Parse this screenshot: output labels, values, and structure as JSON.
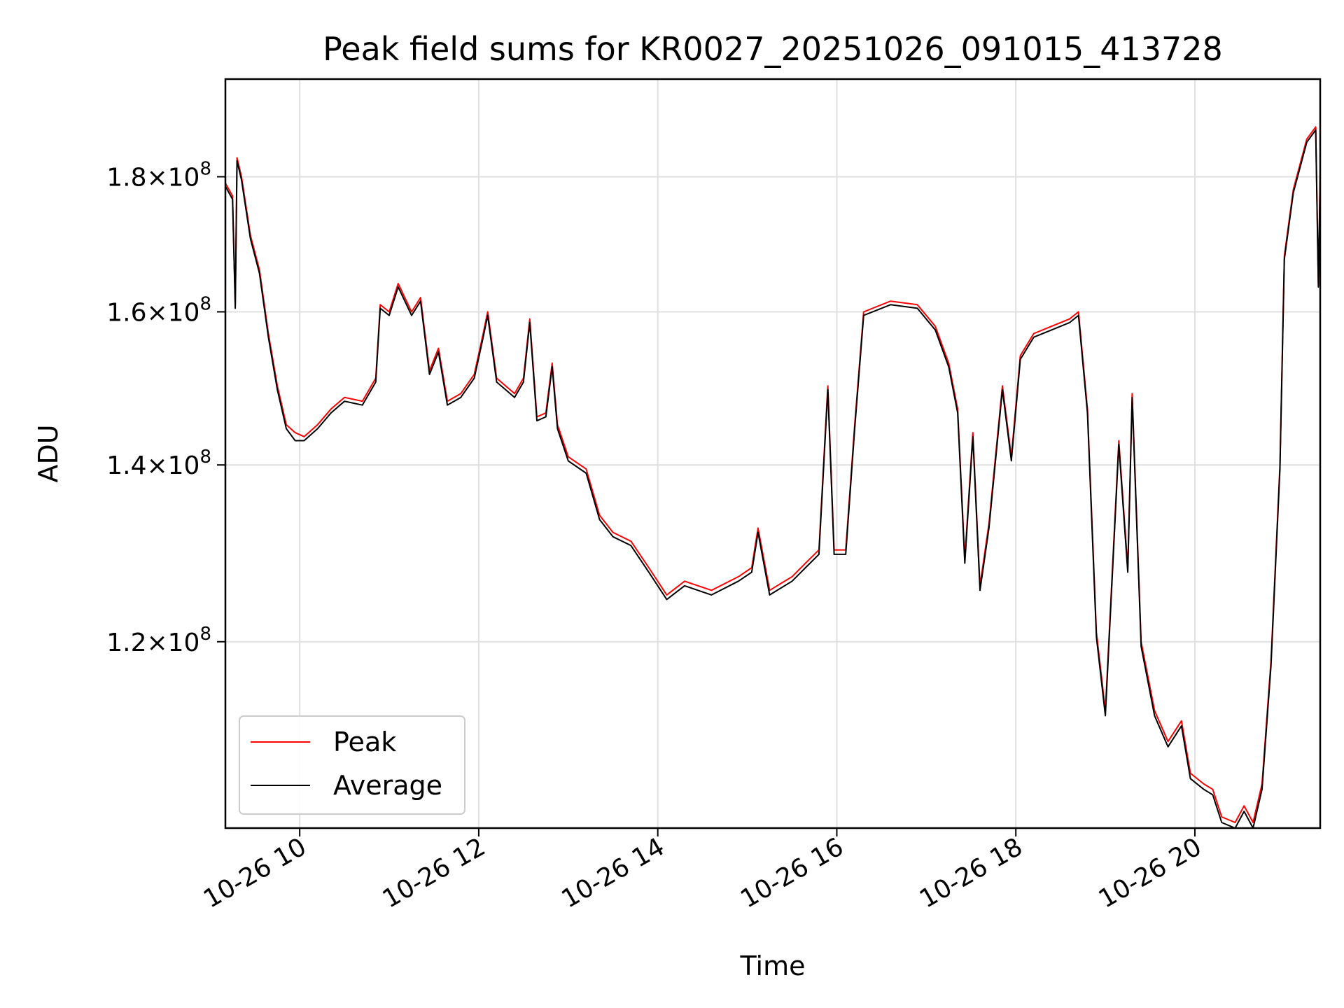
{
  "chart_data": {
    "type": "line",
    "title": "Peak field sums for KR0027_20251026_091015_413728",
    "xlabel": "Time",
    "ylabel": "ADU",
    "x_ticks": [
      "10-26 10",
      "10-26 12",
      "10-26 14",
      "10-26 16",
      "10-26 18",
      "10-26 20"
    ],
    "x_tick_hours": [
      10,
      12,
      14,
      16,
      18,
      20
    ],
    "y_ticks": [
      {
        "value": 120000000,
        "mantissa": "1.2",
        "exponent": "8"
      },
      {
        "value": 140000000,
        "mantissa": "1.4",
        "exponent": "8"
      },
      {
        "value": 160000000,
        "mantissa": "1.6",
        "exponent": "8"
      },
      {
        "value": 180000000,
        "mantissa": "1.8",
        "exponent": "8"
      }
    ],
    "xlim": [
      9.17,
      21.4
    ],
    "ylim": [
      102000000,
      196000000
    ],
    "y_scale": "log",
    "grid": true,
    "legend_position": "lower-left",
    "colors": {
      "peak": "#ff0000",
      "average": "#000000"
    },
    "series": [
      {
        "name": "Peak",
        "color": "#ff0000",
        "points": [
          [
            9.17,
            179000000
          ],
          [
            9.25,
            177000000
          ],
          [
            9.28,
            161000000
          ],
          [
            9.3,
            183000000
          ],
          [
            9.35,
            180000000
          ],
          [
            9.45,
            171000000
          ],
          [
            9.55,
            166000000
          ],
          [
            9.65,
            157000000
          ],
          [
            9.75,
            150000000
          ],
          [
            9.85,
            145000000
          ],
          [
            9.95,
            144000000
          ],
          [
            10.05,
            143500000
          ],
          [
            10.2,
            145000000
          ],
          [
            10.35,
            147000000
          ],
          [
            10.5,
            148500000
          ],
          [
            10.7,
            148000000
          ],
          [
            10.85,
            151000000
          ],
          [
            10.9,
            161000000
          ],
          [
            11.0,
            160000000
          ],
          [
            11.1,
            164000000
          ],
          [
            11.25,
            160000000
          ],
          [
            11.35,
            162000000
          ],
          [
            11.45,
            152000000
          ],
          [
            11.55,
            155000000
          ],
          [
            11.65,
            148000000
          ],
          [
            11.8,
            149000000
          ],
          [
            11.95,
            151500000
          ],
          [
            12.05,
            157000000
          ],
          [
            12.1,
            160000000
          ],
          [
            12.2,
            151000000
          ],
          [
            12.4,
            149000000
          ],
          [
            12.5,
            151000000
          ],
          [
            12.57,
            159000000
          ],
          [
            12.65,
            146000000
          ],
          [
            12.75,
            146500000
          ],
          [
            12.82,
            153000000
          ],
          [
            12.88,
            145000000
          ],
          [
            13.0,
            141000000
          ],
          [
            13.2,
            139500000
          ],
          [
            13.35,
            134000000
          ],
          [
            13.5,
            132000000
          ],
          [
            13.7,
            131000000
          ],
          [
            13.9,
            128000000
          ],
          [
            14.1,
            125000000
          ],
          [
            14.3,
            126500000
          ],
          [
            14.6,
            125500000
          ],
          [
            14.9,
            127000000
          ],
          [
            15.05,
            128000000
          ],
          [
            15.12,
            132500000
          ],
          [
            15.25,
            125500000
          ],
          [
            15.5,
            127000000
          ],
          [
            15.65,
            128500000
          ],
          [
            15.8,
            130000000
          ],
          [
            15.9,
            150000000
          ],
          [
            15.97,
            130000000
          ],
          [
            16.1,
            130000000
          ],
          [
            16.2,
            145000000
          ],
          [
            16.3,
            160000000
          ],
          [
            16.6,
            161500000
          ],
          [
            16.9,
            161000000
          ],
          [
            17.1,
            158000000
          ],
          [
            17.25,
            153000000
          ],
          [
            17.35,
            147000000
          ],
          [
            17.43,
            129000000
          ],
          [
            17.52,
            144000000
          ],
          [
            17.6,
            126000000
          ],
          [
            17.7,
            133000000
          ],
          [
            17.85,
            150000000
          ],
          [
            17.95,
            141000000
          ],
          [
            18.05,
            154000000
          ],
          [
            18.2,
            157000000
          ],
          [
            18.4,
            158000000
          ],
          [
            18.6,
            159000000
          ],
          [
            18.7,
            160000000
          ],
          [
            18.8,
            147000000
          ],
          [
            18.9,
            121000000
          ],
          [
            19.0,
            113000000
          ],
          [
            19.15,
            143000000
          ],
          [
            19.25,
            128000000
          ],
          [
            19.3,
            149000000
          ],
          [
            19.4,
            120000000
          ],
          [
            19.55,
            113000000
          ],
          [
            19.7,
            110000000
          ],
          [
            19.85,
            112000000
          ],
          [
            19.95,
            107000000
          ],
          [
            20.1,
            106000000
          ],
          [
            20.2,
            105500000
          ],
          [
            20.3,
            103000000
          ],
          [
            20.45,
            102500000
          ],
          [
            20.55,
            104000000
          ],
          [
            20.65,
            102500000
          ],
          [
            20.75,
            106000000
          ],
          [
            20.85,
            118000000
          ],
          [
            20.95,
            140000000
          ],
          [
            21.0,
            168000000
          ],
          [
            21.1,
            178000000
          ],
          [
            21.25,
            186000000
          ],
          [
            21.35,
            188000000
          ],
          [
            21.38,
            164000000
          ],
          [
            21.4,
            181000000
          ]
        ]
      },
      {
        "name": "Average",
        "color": "#000000",
        "points": [
          [
            9.17,
            178500000
          ],
          [
            9.25,
            176500000
          ],
          [
            9.28,
            160500000
          ],
          [
            9.3,
            182500000
          ],
          [
            9.35,
            179500000
          ],
          [
            9.45,
            170500000
          ],
          [
            9.55,
            165500000
          ],
          [
            9.65,
            156500000
          ],
          [
            9.75,
            149500000
          ],
          [
            9.85,
            144500000
          ],
          [
            9.95,
            143000000
          ],
          [
            10.05,
            143000000
          ],
          [
            10.2,
            144500000
          ],
          [
            10.35,
            146500000
          ],
          [
            10.5,
            148000000
          ],
          [
            10.7,
            147500000
          ],
          [
            10.85,
            150500000
          ],
          [
            10.9,
            160500000
          ],
          [
            11.0,
            159500000
          ],
          [
            11.1,
            163500000
          ],
          [
            11.25,
            159500000
          ],
          [
            11.35,
            161500000
          ],
          [
            11.45,
            151500000
          ],
          [
            11.55,
            154500000
          ],
          [
            11.65,
            147500000
          ],
          [
            11.8,
            148500000
          ],
          [
            11.95,
            151000000
          ],
          [
            12.05,
            156500000
          ],
          [
            12.1,
            159500000
          ],
          [
            12.2,
            150500000
          ],
          [
            12.4,
            148500000
          ],
          [
            12.5,
            150500000
          ],
          [
            12.57,
            158500000
          ],
          [
            12.65,
            145500000
          ],
          [
            12.75,
            146000000
          ],
          [
            12.82,
            152500000
          ],
          [
            12.88,
            144500000
          ],
          [
            13.0,
            140500000
          ],
          [
            13.2,
            139000000
          ],
          [
            13.35,
            133500000
          ],
          [
            13.5,
            131500000
          ],
          [
            13.7,
            130500000
          ],
          [
            13.9,
            127500000
          ],
          [
            14.1,
            124500000
          ],
          [
            14.3,
            126000000
          ],
          [
            14.6,
            125000000
          ],
          [
            14.9,
            126500000
          ],
          [
            15.05,
            127500000
          ],
          [
            15.12,
            132000000
          ],
          [
            15.25,
            125000000
          ],
          [
            15.5,
            126500000
          ],
          [
            15.65,
            128000000
          ],
          [
            15.8,
            129500000
          ],
          [
            15.9,
            149500000
          ],
          [
            15.97,
            129500000
          ],
          [
            16.1,
            129500000
          ],
          [
            16.2,
            144500000
          ],
          [
            16.3,
            159500000
          ],
          [
            16.6,
            161000000
          ],
          [
            16.9,
            160500000
          ],
          [
            17.1,
            157500000
          ],
          [
            17.25,
            152500000
          ],
          [
            17.35,
            146500000
          ],
          [
            17.43,
            128500000
          ],
          [
            17.52,
            143500000
          ],
          [
            17.6,
            125500000
          ],
          [
            17.7,
            132500000
          ],
          [
            17.85,
            149500000
          ],
          [
            17.95,
            140500000
          ],
          [
            18.05,
            153500000
          ],
          [
            18.2,
            156500000
          ],
          [
            18.4,
            157500000
          ],
          [
            18.6,
            158500000
          ],
          [
            18.7,
            159500000
          ],
          [
            18.8,
            146500000
          ],
          [
            18.9,
            120500000
          ],
          [
            19.0,
            112500000
          ],
          [
            19.15,
            142500000
          ],
          [
            19.25,
            127500000
          ],
          [
            19.3,
            148500000
          ],
          [
            19.4,
            119500000
          ],
          [
            19.55,
            112500000
          ],
          [
            19.7,
            109500000
          ],
          [
            19.85,
            111500000
          ],
          [
            19.95,
            106500000
          ],
          [
            20.1,
            105500000
          ],
          [
            20.2,
            105000000
          ],
          [
            20.3,
            102500000
          ],
          [
            20.45,
            102000000
          ],
          [
            20.55,
            103500000
          ],
          [
            20.65,
            102000000
          ],
          [
            20.75,
            105500000
          ],
          [
            20.85,
            117500000
          ],
          [
            20.95,
            139500000
          ],
          [
            21.0,
            167500000
          ],
          [
            21.1,
            177500000
          ],
          [
            21.25,
            185500000
          ],
          [
            21.35,
            187500000
          ],
          [
            21.38,
            163500000
          ],
          [
            21.4,
            180500000
          ]
        ]
      }
    ]
  }
}
